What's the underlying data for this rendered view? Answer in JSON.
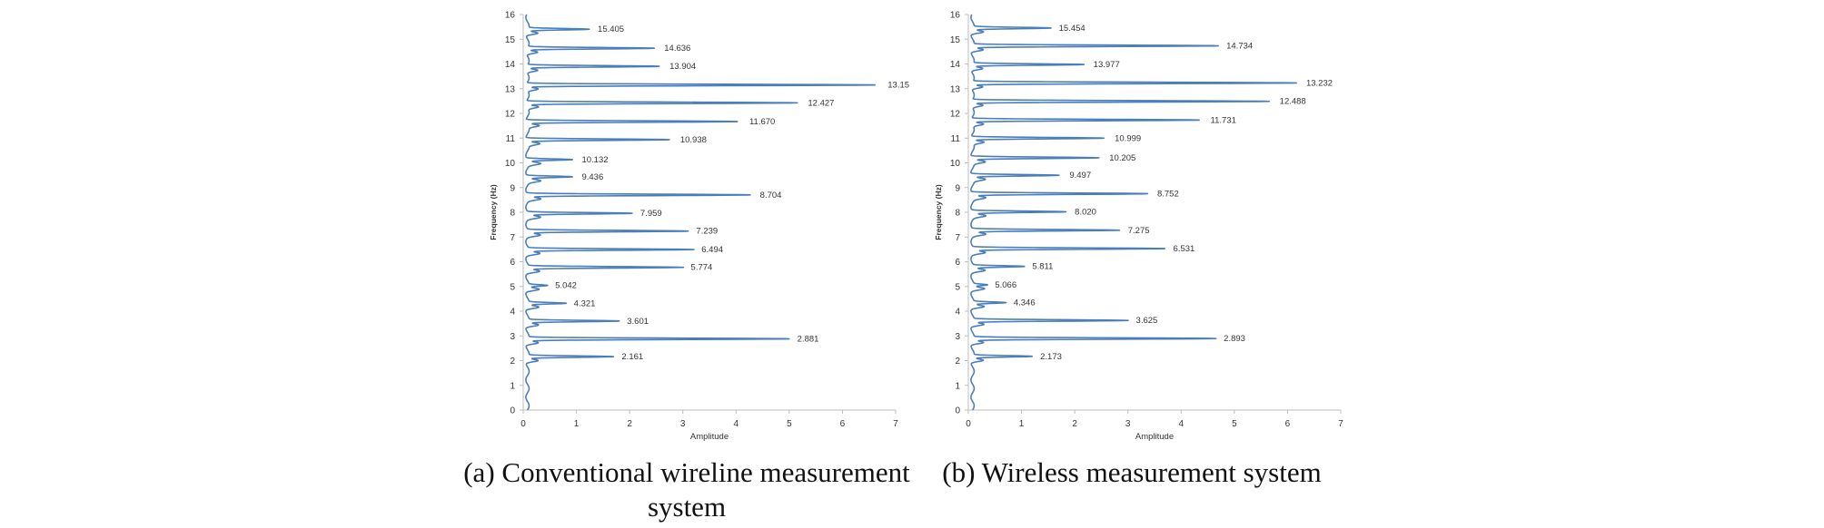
{
  "chart_data": [
    {
      "type": "line",
      "caption": "(a) Conventional wireline measurement system",
      "xlabel": "Amplitude",
      "ylabel": "Frequency (Hz)",
      "xlim": [
        0,
        7
      ],
      "ylim": [
        0,
        16
      ],
      "xticks": [
        0,
        1,
        2,
        3,
        4,
        5,
        6,
        7
      ],
      "yticks": [
        0,
        1,
        2,
        3,
        4,
        5,
        6,
        7,
        8,
        9,
        10,
        11,
        12,
        13,
        14,
        15,
        16
      ],
      "color": "#4a7ebb",
      "peaks": [
        {
          "label": "2.161",
          "frequency": 2.161,
          "amplitude": 1.6
        },
        {
          "label": "2.881",
          "frequency": 2.881,
          "amplitude": 4.9
        },
        {
          "label": "3.601",
          "frequency": 3.601,
          "amplitude": 1.7
        },
        {
          "label": "4.321",
          "frequency": 4.321,
          "amplitude": 0.7
        },
        {
          "label": "5.042",
          "frequency": 5.042,
          "amplitude": 0.35
        },
        {
          "label": "5.774",
          "frequency": 5.774,
          "amplitude": 2.9
        },
        {
          "label": "6.494",
          "frequency": 6.494,
          "amplitude": 3.1
        },
        {
          "label": "7.239",
          "frequency": 7.239,
          "amplitude": 3.0
        },
        {
          "label": "7.959",
          "frequency": 7.959,
          "amplitude": 1.95
        },
        {
          "label": "8.704",
          "frequency": 8.704,
          "amplitude": 4.2
        },
        {
          "label": "9.436",
          "frequency": 9.436,
          "amplitude": 0.85
        },
        {
          "label": "10.132",
          "frequency": 10.132,
          "amplitude": 0.85
        },
        {
          "label": "10.938",
          "frequency": 10.938,
          "amplitude": 2.7
        },
        {
          "label": "11.670",
          "frequency": 11.67,
          "amplitude": 4.0
        },
        {
          "label": "12.427",
          "frequency": 12.427,
          "amplitude": 5.1
        },
        {
          "label": "13.15",
          "frequency": 13.15,
          "amplitude": 6.6
        },
        {
          "label": "13.904",
          "frequency": 13.904,
          "amplitude": 2.5
        },
        {
          "label": "14.636",
          "frequency": 14.636,
          "amplitude": 2.4
        },
        {
          "label": "15.405",
          "frequency": 15.405,
          "amplitude": 1.15
        }
      ]
    },
    {
      "type": "line",
      "caption": "(b) Wireless measurement system",
      "xlabel": "Amplitude",
      "ylabel": "Frequency (Hz)",
      "xlim": [
        0,
        7
      ],
      "ylim": [
        0,
        16
      ],
      "xticks": [
        0,
        1,
        2,
        3,
        4,
        5,
        6,
        7
      ],
      "yticks": [
        0,
        1,
        2,
        3,
        4,
        5,
        6,
        7,
        8,
        9,
        10,
        11,
        12,
        13,
        14,
        15,
        16
      ],
      "color": "#4a7ebb",
      "peaks": [
        {
          "label": "2.173",
          "frequency": 2.173,
          "amplitude": 1.1
        },
        {
          "label": "2.893",
          "frequency": 2.893,
          "amplitude": 4.55
        },
        {
          "label": "3.625",
          "frequency": 3.625,
          "amplitude": 2.9
        },
        {
          "label": "4.346",
          "frequency": 4.346,
          "amplitude": 0.6
        },
        {
          "label": "5.066",
          "frequency": 5.066,
          "amplitude": 0.25
        },
        {
          "label": "5.811",
          "frequency": 5.811,
          "amplitude": 0.95
        },
        {
          "label": "6.531",
          "frequency": 6.531,
          "amplitude": 3.6
        },
        {
          "label": "7.275",
          "frequency": 7.275,
          "amplitude": 2.75
        },
        {
          "label": "8.020",
          "frequency": 8.02,
          "amplitude": 1.75
        },
        {
          "label": "8.752",
          "frequency": 8.752,
          "amplitude": 3.3
        },
        {
          "label": "9.497",
          "frequency": 9.497,
          "amplitude": 1.65
        },
        {
          "label": "10.205",
          "frequency": 10.205,
          "amplitude": 2.4
        },
        {
          "label": "10.999",
          "frequency": 10.999,
          "amplitude": 2.5
        },
        {
          "label": "11.731",
          "frequency": 11.731,
          "amplitude": 4.3
        },
        {
          "label": "12.488",
          "frequency": 12.488,
          "amplitude": 5.6
        },
        {
          "label": "13.232",
          "frequency": 13.232,
          "amplitude": 6.1
        },
        {
          "label": "13.977",
          "frequency": 13.977,
          "amplitude": 2.1
        },
        {
          "label": "14.734",
          "frequency": 14.734,
          "amplitude": 4.6
        },
        {
          "label": "15.454",
          "frequency": 15.454,
          "amplitude": 1.45
        }
      ]
    }
  ]
}
